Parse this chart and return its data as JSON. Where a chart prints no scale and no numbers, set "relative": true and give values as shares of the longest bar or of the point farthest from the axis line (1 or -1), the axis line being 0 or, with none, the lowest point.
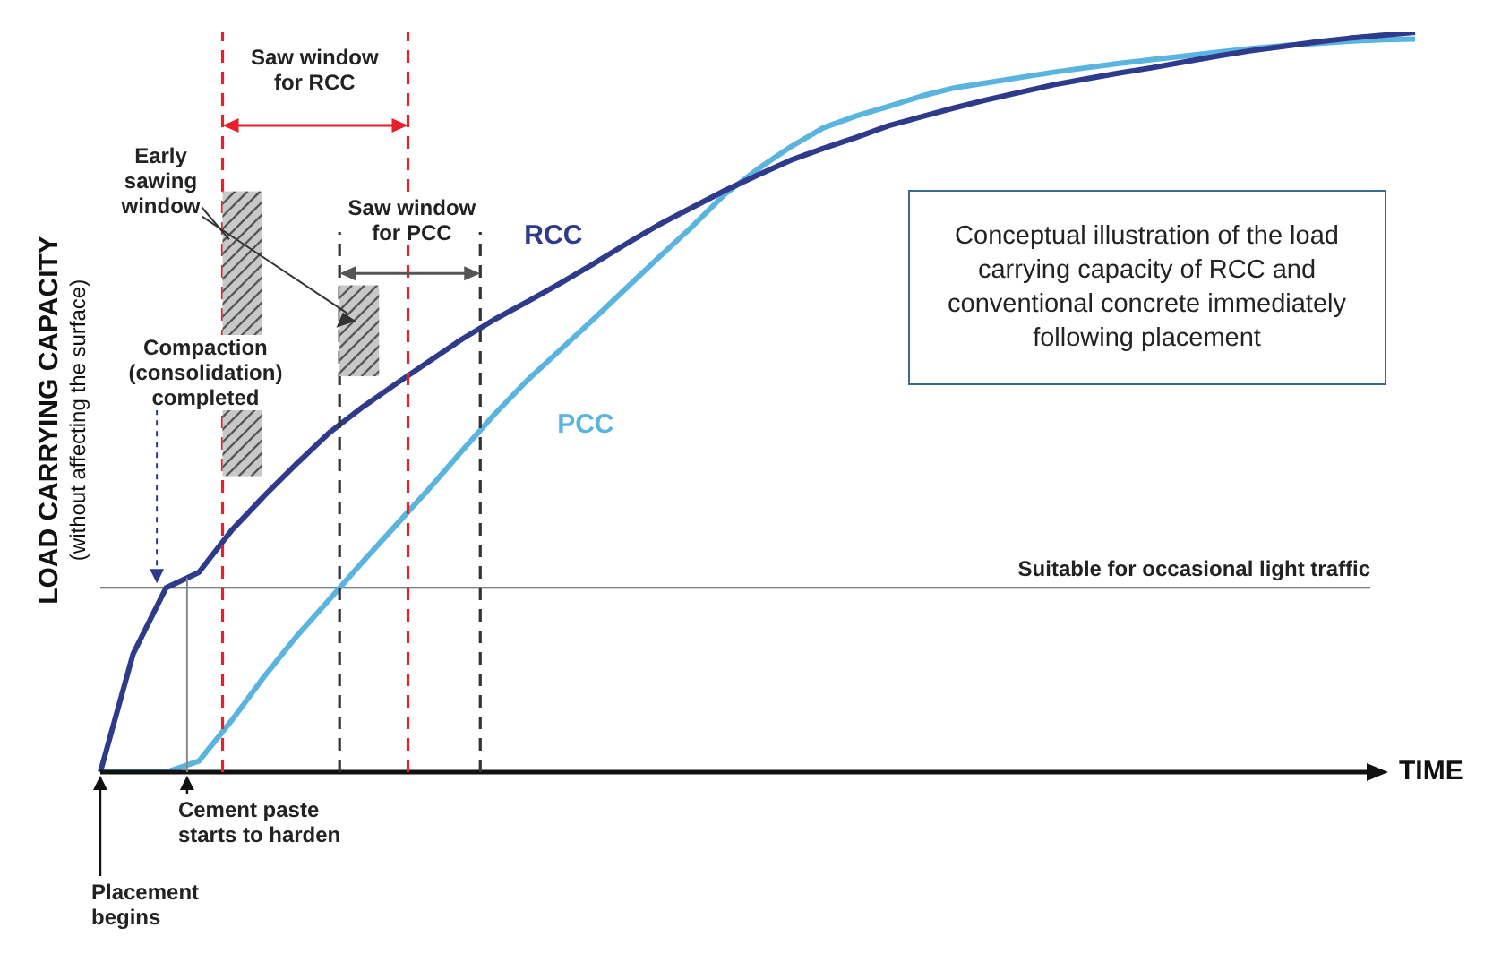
{
  "chart_data": {
    "type": "line",
    "relative": true,
    "xlabel": "TIME",
    "ylabel": "LOAD CARRYING CAPACITY\n(without affecting the surface)",
    "tick_labels": false,
    "marker": "none",
    "line_style": "solid",
    "categories": [
      null,
      null,
      null,
      null,
      null,
      null,
      null,
      null,
      null,
      null,
      null,
      null,
      null,
      null,
      null,
      null,
      null,
      null,
      null,
      null,
      null,
      null,
      null,
      null,
      null,
      null,
      null,
      null,
      null,
      null,
      null,
      null,
      null,
      null,
      null,
      null,
      null,
      null,
      null,
      null,
      null
    ],
    "series": [
      {
        "name": "RCC",
        "color": "#2e3a8c",
        "values": [
          0,
          0.16,
          0.249,
          0.27,
          0.327,
          0.374,
          0.418,
          0.46,
          0.494,
          0.525,
          0.555,
          0.585,
          0.612,
          0.636,
          0.661,
          0.687,
          0.714,
          0.74,
          0.763,
          0.786,
          0.807,
          0.827,
          0.843,
          0.858,
          0.874,
          0.886,
          0.898,
          0.909,
          0.919,
          0.929,
          0.937,
          0.945,
          0.952,
          0.96,
          0.968,
          0.975,
          0.981,
          0.987,
          0.992,
          0.996,
          1
        ]
      },
      {
        "name": "PCC",
        "color": "#5ab4e0",
        "values": [
          0,
          0,
          0,
          0.015,
          0.07,
          0.13,
          0.185,
          0.235,
          0.285,
          0.334,
          0.383,
          0.434,
          0.484,
          0.53,
          0.571,
          0.612,
          0.654,
          0.696,
          0.737,
          0.781,
          0.815,
          0.845,
          0.871,
          0.887,
          0.9,
          0.914,
          0.925,
          0.932,
          0.939,
          0.946,
          0.952,
          0.958,
          0.963,
          0.968,
          0.973,
          0.978,
          0.982,
          0.985,
          0.988,
          0.99,
          0.991
        ]
      }
    ],
    "ref_lines": [
      {
        "axis": "y",
        "value": 0.249,
        "label": "Suitable for occasional light traffic",
        "color": "#555555",
        "line_style": "solid"
      }
    ],
    "annotations": [
      "Saw window\nfor RCC",
      "Saw window\nfor PCC",
      "Early\nsawing\nwindow",
      "Compaction\n(consolidation)\ncompleted",
      "Cement paste\nstarts to harden",
      "Placement\nbegins",
      "Conceptual illustration of the load carrying capacity of RCC and conventional concrete immediately following placement"
    ]
  }
}
